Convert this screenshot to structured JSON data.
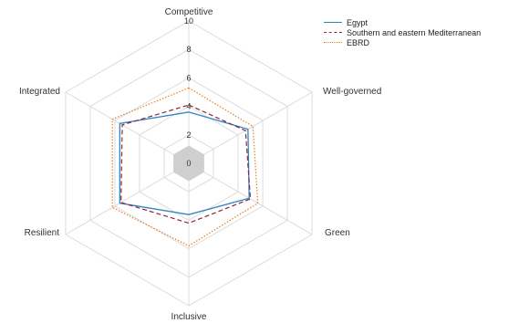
{
  "chart_data": {
    "type": "radar",
    "axes": [
      "Competitive",
      "Well-governed",
      "Green",
      "Inclusive",
      "Resilient",
      "Integrated"
    ],
    "r_ticks": [
      "0",
      "2",
      "4",
      "6",
      "8",
      "10"
    ],
    "r_range": [
      0,
      10
    ],
    "series": [
      {
        "name": "Egypt",
        "values": [
          3.6,
          4.8,
          4.9,
          3.6,
          5.6,
          5.6
        ],
        "color": "#2e86c1",
        "dash": "solid"
      },
      {
        "name": "Southern and eastern Mediterranean",
        "values": [
          4.1,
          4.6,
          5.0,
          4.2,
          5.5,
          5.4
        ],
        "color": "#8e2440",
        "dash": "dashed"
      },
      {
        "name": "EBRD",
        "values": [
          5.3,
          5.2,
          5.6,
          5.8,
          6.2,
          6.2
        ],
        "color": "#e67e22",
        "dash": "dotted"
      }
    ],
    "center_marker_color": "#cfcfcf",
    "grid": true,
    "legend_position": "top-right"
  }
}
